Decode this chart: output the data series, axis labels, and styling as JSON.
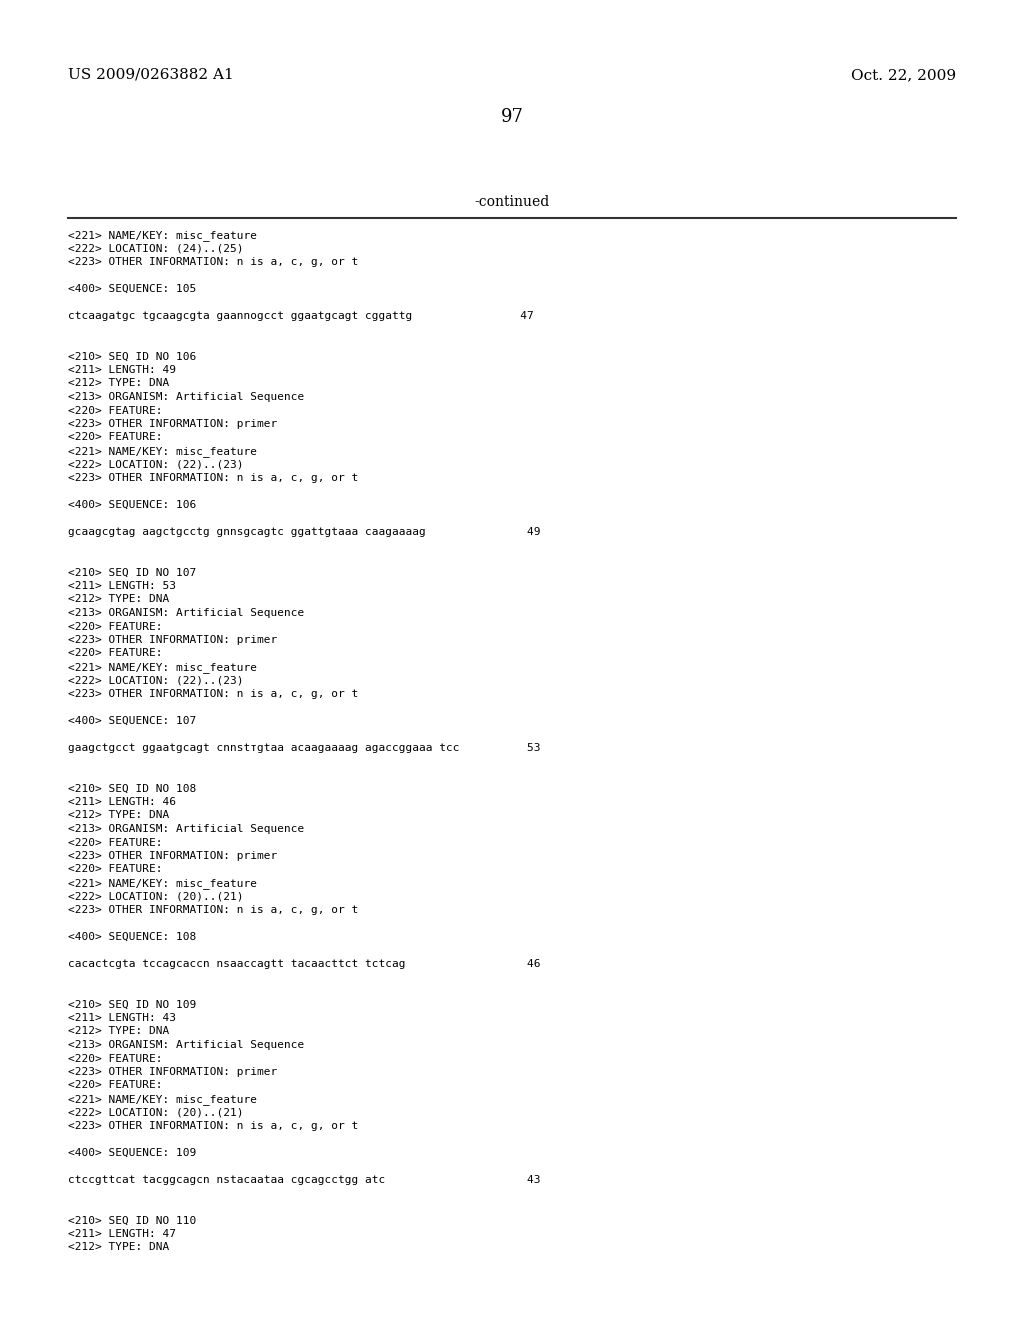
{
  "left_header": "US 2009/0263882 A1",
  "right_header": "Oct. 22, 2009",
  "page_number": "97",
  "continued_label": "-continued",
  "background_color": "#ffffff",
  "text_color": "#000000",
  "header_fontsize": 11,
  "page_num_fontsize": 13,
  "continued_fontsize": 10,
  "content_fontsize": 8.0,
  "content_lines": [
    "<221> NAME/KEY: misc_feature",
    "<222> LOCATION: (24)..(25)",
    "<223> OTHER INFORMATION: n is a, c, g, or t",
    "",
    "<400> SEQUENCE: 105",
    "",
    "ctcaagatgc tgcaagcgta gaannogcct ggaatgcagt cggattg                47",
    "",
    "",
    "<210> SEQ ID NO 106",
    "<211> LENGTH: 49",
    "<212> TYPE: DNA",
    "<213> ORGANISM: Artificial Sequence",
    "<220> FEATURE:",
    "<223> OTHER INFORMATION: primer",
    "<220> FEATURE:",
    "<221> NAME/KEY: misc_feature",
    "<222> LOCATION: (22)..(23)",
    "<223> OTHER INFORMATION: n is a, c, g, or t",
    "",
    "<400> SEQUENCE: 106",
    "",
    "gcaagcgtag aagctgcctg gnnsgcagtc ggattgtaaa caagaaaag               49",
    "",
    "",
    "<210> SEQ ID NO 107",
    "<211> LENGTH: 53",
    "<212> TYPE: DNA",
    "<213> ORGANISM: Artificial Sequence",
    "<220> FEATURE:",
    "<223> OTHER INFORMATION: primer",
    "<220> FEATURE:",
    "<221> NAME/KEY: misc_feature",
    "<222> LOCATION: (22)..(23)",
    "<223> OTHER INFORMATION: n is a, c, g, or t",
    "",
    "<400> SEQUENCE: 107",
    "",
    "gaagctgcct ggaatgcagt cnnstтgtaa acaagaaaag agaccggaaa tcc          53",
    "",
    "",
    "<210> SEQ ID NO 108",
    "<211> LENGTH: 46",
    "<212> TYPE: DNA",
    "<213> ORGANISM: Artificial Sequence",
    "<220> FEATURE:",
    "<223> OTHER INFORMATION: primer",
    "<220> FEATURE:",
    "<221> NAME/KEY: misc_feature",
    "<222> LOCATION: (20)..(21)",
    "<223> OTHER INFORMATION: n is a, c, g, or t",
    "",
    "<400> SEQUENCE: 108",
    "",
    "cacactcgta tccagcaccn nsaaccagtt tacaacttct tctcag                  46",
    "",
    "",
    "<210> SEQ ID NO 109",
    "<211> LENGTH: 43",
    "<212> TYPE: DNA",
    "<213> ORGANISM: Artificial Sequence",
    "<220> FEATURE:",
    "<223> OTHER INFORMATION: primer",
    "<220> FEATURE:",
    "<221> NAME/KEY: misc_feature",
    "<222> LOCATION: (20)..(21)",
    "<223> OTHER INFORMATION: n is a, c, g, or t",
    "",
    "<400> SEQUENCE: 109",
    "",
    "ctccgttcat tacggcagcn nstacaataa cgcagcctgg atc                     43",
    "",
    "",
    "<210> SEQ ID NO 110",
    "<211> LENGTH: 47",
    "<212> TYPE: DNA"
  ]
}
